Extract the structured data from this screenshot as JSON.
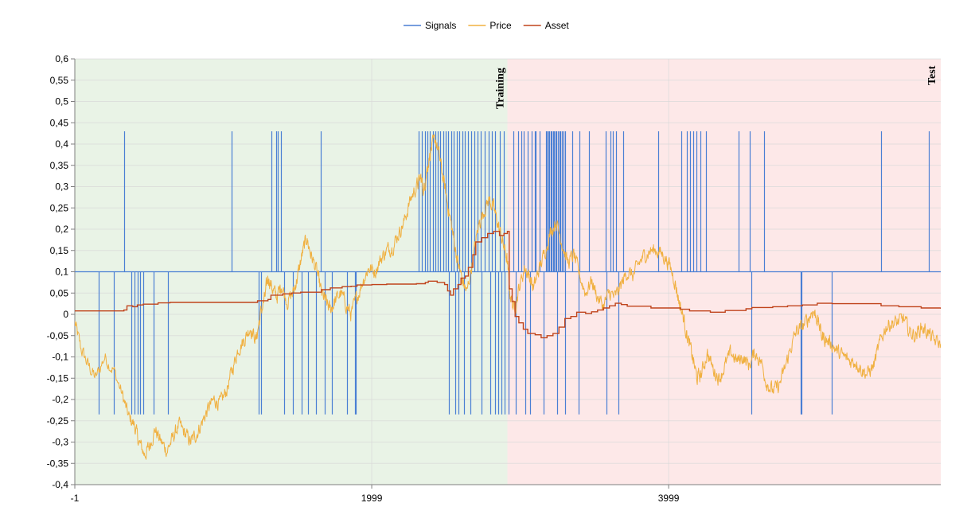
{
  "chart_data": {
    "type": "line",
    "title": "",
    "xlabel": "",
    "ylabel": "",
    "xlim": [
      -1,
      5832
    ],
    "ylim": [
      -0.4,
      0.6
    ],
    "x_ticks": [
      "-1",
      "1999",
      "3999"
    ],
    "x_tick_values": [
      -1,
      1999,
      3999
    ],
    "y_ticks": [
      "0,6",
      "0,55",
      "0,5",
      "0,45",
      "0,4",
      "0,35",
      "0,3",
      "0,25",
      "0,2",
      "0,15",
      "0,1",
      "0,05",
      "0",
      "-0,05",
      "-0,1",
      "-0,15",
      "-0,2",
      "-0,25",
      "-0,3",
      "-0,35",
      "-0,4"
    ],
    "y_tick_values": [
      0.6,
      0.55,
      0.5,
      0.45,
      0.4,
      0.35,
      0.3,
      0.25,
      0.2,
      0.15,
      0.1,
      0.05,
      0,
      -0.05,
      -0.1,
      -0.15,
      -0.2,
      -0.25,
      -0.3,
      -0.35,
      -0.4
    ],
    "grid": true,
    "legend_position": "top-center",
    "legend": [
      "Signals",
      "Price",
      "Asset"
    ],
    "regions": [
      {
        "label": "Training",
        "x_start": -1,
        "x_end": 2913,
        "color": "#e9f3e6"
      },
      {
        "label": "Test",
        "x_start": 2913,
        "x_end": 5832,
        "color": "#fde8e8"
      }
    ],
    "series": [
      {
        "name": "Signals",
        "color": "#4a7fd4",
        "baseline": 0.1,
        "high": 0.43,
        "low": -0.235,
        "up_spikes_x": [
          333,
          1057,
          1325,
          1355,
          1368,
          1390,
          1655,
          2316,
          2335,
          2358,
          2373,
          2392,
          2410,
          2428,
          2445,
          2462,
          2480,
          2498,
          2515,
          2533,
          2552,
          2570,
          2588,
          2608,
          2628,
          2648,
          2668,
          2690,
          2712,
          2735,
          2760,
          2785,
          2808,
          2832,
          2863,
          2890,
          2954,
          2985,
          3008,
          3025,
          3048,
          3077,
          3098,
          3105,
          3132,
          3172,
          3180,
          3188,
          3196,
          3204,
          3212,
          3220,
          3228,
          3236,
          3244,
          3252,
          3262,
          3272,
          3282,
          3292,
          3302,
          3352,
          3398,
          3462,
          3575,
          3605,
          3625,
          3643,
          3692,
          3930,
          4085,
          4122,
          4142,
          4163,
          4185,
          4215,
          4252,
          4470,
          4545,
          4640,
          5428,
          5752
        ],
        "down_spikes_x": [
          158,
          262,
          382,
          400,
          420,
          438,
          458,
          532,
          625,
          1238,
          1255,
          1410,
          1470,
          1525,
          1568,
          1625,
          1685,
          1730,
          1830,
          1885,
          1890,
          2520,
          2562,
          2585,
          2620,
          2665,
          2740,
          2800,
          2830,
          2850,
          2875,
          2895,
          2920,
          2970,
          3035,
          3068,
          3158,
          3248,
          3304,
          3392,
          3582,
          3660,
          4558,
          4890,
          4895,
          5097
        ]
      },
      {
        "name": "Price",
        "color": "#f0b040",
        "anchors": [
          [
            -1,
            -0.02
          ],
          [
            40,
            -0.08
          ],
          [
            90,
            -0.12
          ],
          [
            140,
            -0.15
          ],
          [
            200,
            -0.1
          ],
          [
            260,
            -0.13
          ],
          [
            320,
            -0.19
          ],
          [
            360,
            -0.24
          ],
          [
            400,
            -0.26
          ],
          [
            430,
            -0.3
          ],
          [
            470,
            -0.33
          ],
          [
            500,
            -0.31
          ],
          [
            540,
            -0.27
          ],
          [
            580,
            -0.3
          ],
          [
            620,
            -0.32
          ],
          [
            660,
            -0.29
          ],
          [
            700,
            -0.26
          ],
          [
            740,
            -0.28
          ],
          [
            780,
            -0.3
          ],
          [
            820,
            -0.28
          ],
          [
            860,
            -0.25
          ],
          [
            900,
            -0.22
          ],
          [
            940,
            -0.2
          ],
          [
            980,
            -0.21
          ],
          [
            1020,
            -0.18
          ],
          [
            1060,
            -0.13
          ],
          [
            1100,
            -0.08
          ],
          [
            1140,
            -0.06
          ],
          [
            1180,
            -0.03
          ],
          [
            1220,
            -0.06
          ],
          [
            1250,
            0.0
          ],
          [
            1280,
            0.04
          ],
          [
            1300,
            0.09
          ],
          [
            1330,
            0.06
          ],
          [
            1360,
            0.04
          ],
          [
            1390,
            0.07
          ],
          [
            1430,
            0.03
          ],
          [
            1470,
            0.05
          ],
          [
            1500,
            0.09
          ],
          [
            1530,
            0.14
          ],
          [
            1560,
            0.18
          ],
          [
            1590,
            0.14
          ],
          [
            1630,
            0.1
          ],
          [
            1660,
            0.05
          ],
          [
            1690,
            0.03
          ],
          [
            1720,
            0.01
          ],
          [
            1750,
            0.03
          ],
          [
            1790,
            0.05
          ],
          [
            1830,
            0.02
          ],
          [
            1860,
            0.0
          ],
          [
            1900,
            0.04
          ],
          [
            1940,
            0.08
          ],
          [
            1980,
            0.11
          ],
          [
            2020,
            0.1
          ],
          [
            2060,
            0.13
          ],
          [
            2100,
            0.15
          ],
          [
            2140,
            0.16
          ],
          [
            2180,
            0.19
          ],
          [
            2220,
            0.22
          ],
          [
            2260,
            0.27
          ],
          [
            2300,
            0.3
          ],
          [
            2330,
            0.32
          ],
          [
            2350,
            0.29
          ],
          [
            2370,
            0.34
          ],
          [
            2400,
            0.39
          ],
          [
            2430,
            0.41
          ],
          [
            2460,
            0.36
          ],
          [
            2490,
            0.3
          ],
          [
            2520,
            0.24
          ],
          [
            2550,
            0.18
          ],
          [
            2580,
            0.12
          ],
          [
            2610,
            0.08
          ],
          [
            2640,
            0.05
          ],
          [
            2680,
            0.13
          ],
          [
            2720,
            0.21
          ],
          [
            2750,
            0.24
          ],
          [
            2790,
            0.27
          ],
          [
            2820,
            0.25
          ],
          [
            2850,
            0.21
          ],
          [
            2880,
            0.17
          ],
          [
            2910,
            0.13
          ],
          [
            2930,
            0.05
          ],
          [
            2960,
            0.01
          ],
          [
            2990,
            0.06
          ],
          [
            3030,
            0.11
          ],
          [
            3060,
            0.09
          ],
          [
            3090,
            0.06
          ],
          [
            3120,
            0.1
          ],
          [
            3160,
            0.14
          ],
          [
            3200,
            0.19
          ],
          [
            3240,
            0.22
          ],
          [
            3280,
            0.17
          ],
          [
            3320,
            0.12
          ],
          [
            3360,
            0.14
          ],
          [
            3400,
            0.09
          ],
          [
            3440,
            0.05
          ],
          [
            3480,
            0.08
          ],
          [
            3520,
            0.04
          ],
          [
            3560,
            0.02
          ],
          [
            3600,
            0.05
          ],
          [
            3640,
            0.04
          ],
          [
            3680,
            0.07
          ],
          [
            3720,
            0.1
          ],
          [
            3760,
            0.09
          ],
          [
            3800,
            0.12
          ],
          [
            3840,
            0.14
          ],
          [
            3880,
            0.15
          ],
          [
            3920,
            0.15
          ],
          [
            3960,
            0.14
          ],
          [
            4000,
            0.12
          ],
          [
            4040,
            0.08
          ],
          [
            4070,
            0.03
          ],
          [
            4100,
            -0.01
          ],
          [
            4130,
            -0.06
          ],
          [
            4160,
            -0.1
          ],
          [
            4190,
            -0.15
          ],
          [
            4220,
            -0.14
          ],
          [
            4260,
            -0.09
          ],
          [
            4300,
            -0.13
          ],
          [
            4340,
            -0.15
          ],
          [
            4380,
            -0.12
          ],
          [
            4420,
            -0.09
          ],
          [
            4460,
            -0.11
          ],
          [
            4500,
            -0.1
          ],
          [
            4540,
            -0.12
          ],
          [
            4580,
            -0.09
          ],
          [
            4620,
            -0.11
          ],
          [
            4660,
            -0.16
          ],
          [
            4700,
            -0.18
          ],
          [
            4740,
            -0.17
          ],
          [
            4780,
            -0.13
          ],
          [
            4820,
            -0.08
          ],
          [
            4860,
            -0.04
          ],
          [
            4900,
            -0.03
          ],
          [
            4940,
            -0.01
          ],
          [
            4970,
            0.01
          ],
          [
            5000,
            -0.01
          ],
          [
            5030,
            -0.05
          ],
          [
            5060,
            -0.06
          ],
          [
            5100,
            -0.07
          ],
          [
            5140,
            -0.09
          ],
          [
            5180,
            -0.1
          ],
          [
            5220,
            -0.11
          ],
          [
            5260,
            -0.11
          ],
          [
            5300,
            -0.13
          ],
          [
            5340,
            -0.14
          ],
          [
            5380,
            -0.12
          ],
          [
            5420,
            -0.07
          ],
          [
            5460,
            -0.03
          ],
          [
            5500,
            -0.02
          ],
          [
            5540,
            -0.02
          ],
          [
            5580,
            -0.01
          ],
          [
            5620,
            -0.04
          ],
          [
            5660,
            -0.05
          ],
          [
            5700,
            -0.03
          ],
          [
            5740,
            -0.04
          ],
          [
            5780,
            -0.06
          ],
          [
            5832,
            -0.07
          ]
        ]
      },
      {
        "name": "Asset",
        "color": "#c0441c",
        "steps": [
          [
            -1,
            0.008
          ],
          [
            330,
            0.01
          ],
          [
            350,
            0.02
          ],
          [
            390,
            0.018
          ],
          [
            420,
            0.022
          ],
          [
            460,
            0.024
          ],
          [
            560,
            0.027
          ],
          [
            640,
            0.028
          ],
          [
            1230,
            0.032
          ],
          [
            1300,
            0.035
          ],
          [
            1320,
            0.045
          ],
          [
            1400,
            0.048
          ],
          [
            1460,
            0.05
          ],
          [
            1520,
            0.052
          ],
          [
            1660,
            0.058
          ],
          [
            1720,
            0.062
          ],
          [
            1800,
            0.065
          ],
          [
            1860,
            0.066
          ],
          [
            1900,
            0.069
          ],
          [
            2000,
            0.07
          ],
          [
            2100,
            0.071
          ],
          [
            2300,
            0.072
          ],
          [
            2360,
            0.075
          ],
          [
            2380,
            0.078
          ],
          [
            2440,
            0.075
          ],
          [
            2490,
            0.07
          ],
          [
            2510,
            0.055
          ],
          [
            2530,
            0.045
          ],
          [
            2550,
            0.06
          ],
          [
            2580,
            0.07
          ],
          [
            2600,
            0.085
          ],
          [
            2630,
            0.09
          ],
          [
            2650,
            0.11
          ],
          [
            2680,
            0.14
          ],
          [
            2700,
            0.17
          ],
          [
            2740,
            0.18
          ],
          [
            2780,
            0.19
          ],
          [
            2820,
            0.195
          ],
          [
            2860,
            0.185
          ],
          [
            2890,
            0.19
          ],
          [
            2913,
            0.195
          ],
          [
            2925,
            0.06
          ],
          [
            2945,
            0.03
          ],
          [
            2965,
            -0.005
          ],
          [
            2990,
            -0.02
          ],
          [
            3020,
            -0.035
          ],
          [
            3050,
            -0.045
          ],
          [
            3100,
            -0.048
          ],
          [
            3140,
            -0.055
          ],
          [
            3180,
            -0.05
          ],
          [
            3220,
            -0.045
          ],
          [
            3260,
            -0.03
          ],
          [
            3300,
            -0.01
          ],
          [
            3340,
            -0.005
          ],
          [
            3380,
            0.005
          ],
          [
            3440,
            0.002
          ],
          [
            3480,
            0.006
          ],
          [
            3520,
            0.01
          ],
          [
            3560,
            0.015
          ],
          [
            3600,
            0.02
          ],
          [
            3640,
            0.026
          ],
          [
            3680,
            0.023
          ],
          [
            3720,
            0.019
          ],
          [
            3880,
            0.015
          ],
          [
            4080,
            0.012
          ],
          [
            4140,
            0.008
          ],
          [
            4280,
            0.005
          ],
          [
            4380,
            0.009
          ],
          [
            4520,
            0.013
          ],
          [
            4560,
            0.016
          ],
          [
            4700,
            0.018
          ],
          [
            4800,
            0.02
          ],
          [
            4900,
            0.022
          ],
          [
            5000,
            0.026
          ],
          [
            5100,
            0.025
          ],
          [
            5430,
            0.02
          ],
          [
            5550,
            0.018
          ],
          [
            5700,
            0.015
          ],
          [
            5832,
            0.013
          ]
        ]
      }
    ]
  }
}
